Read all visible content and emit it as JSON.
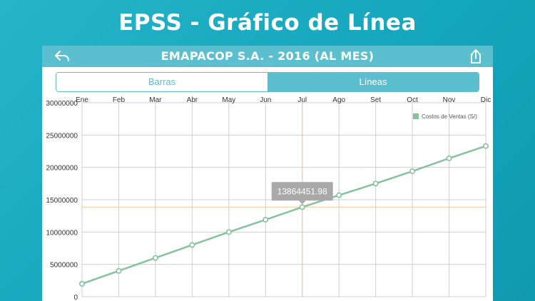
{
  "page_title": "EPSS - Gráfico de Línea",
  "navbar": {
    "title": "EMAPACOP S.A. - 2016 (AL MES)",
    "back_icon": "back-arrow-icon",
    "share_icon": "share-icon"
  },
  "segmented": {
    "bars_label": "Barras",
    "lines_label": "Líneas",
    "selected": "Líneas"
  },
  "colors": {
    "background": "#14a6bd",
    "accent": "#5bbfcf",
    "line": "#86c39d",
    "highlight": "#f5c79a"
  },
  "chart_data": {
    "type": "line",
    "categories": [
      "Ene",
      "Feb",
      "Mar",
      "Abr",
      "May",
      "Jun",
      "Jul",
      "Ago",
      "Set",
      "Oct",
      "Nov",
      "Dic"
    ],
    "series": [
      {
        "name": "Costos de Ventas (S/)",
        "values": [
          2000000,
          4000000,
          6000000,
          8000000,
          10000000,
          11900000,
          13864451.98,
          15700000,
          17500000,
          19400000,
          21400000,
          23300000
        ]
      }
    ],
    "yticks": [
      "30000000",
      "25000000",
      "20000000",
      "15000000",
      "10000000",
      "5000000",
      "0"
    ],
    "ylim": [
      0,
      30000000
    ],
    "grid": true,
    "legend": "top-right",
    "highlight": {
      "index": 6,
      "label": "13864451.98"
    }
  }
}
